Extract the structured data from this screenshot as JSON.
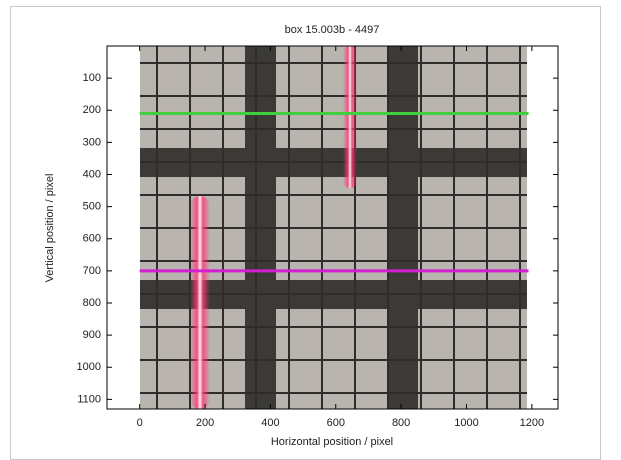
{
  "chart_data": {
    "type": "image-lines",
    "title": "box 15.003b - 4497",
    "x_label": "Horizontal position / pixel",
    "y_label": "Vertical position / pixel",
    "xlim": [
      -100,
      1280
    ],
    "xticks": [
      0,
      200,
      400,
      600,
      800,
      1000,
      1200
    ],
    "ylim": [
      0,
      1130
    ],
    "yticks": [
      100,
      200,
      300,
      400,
      500,
      600,
      700,
      800,
      900,
      1000,
      1100
    ],
    "y_reversed": true,
    "hlines": [
      {
        "value": 210,
        "color": "#3fcf3f"
      },
      {
        "value": 700,
        "color": "#d21fd2"
      }
    ]
  }
}
